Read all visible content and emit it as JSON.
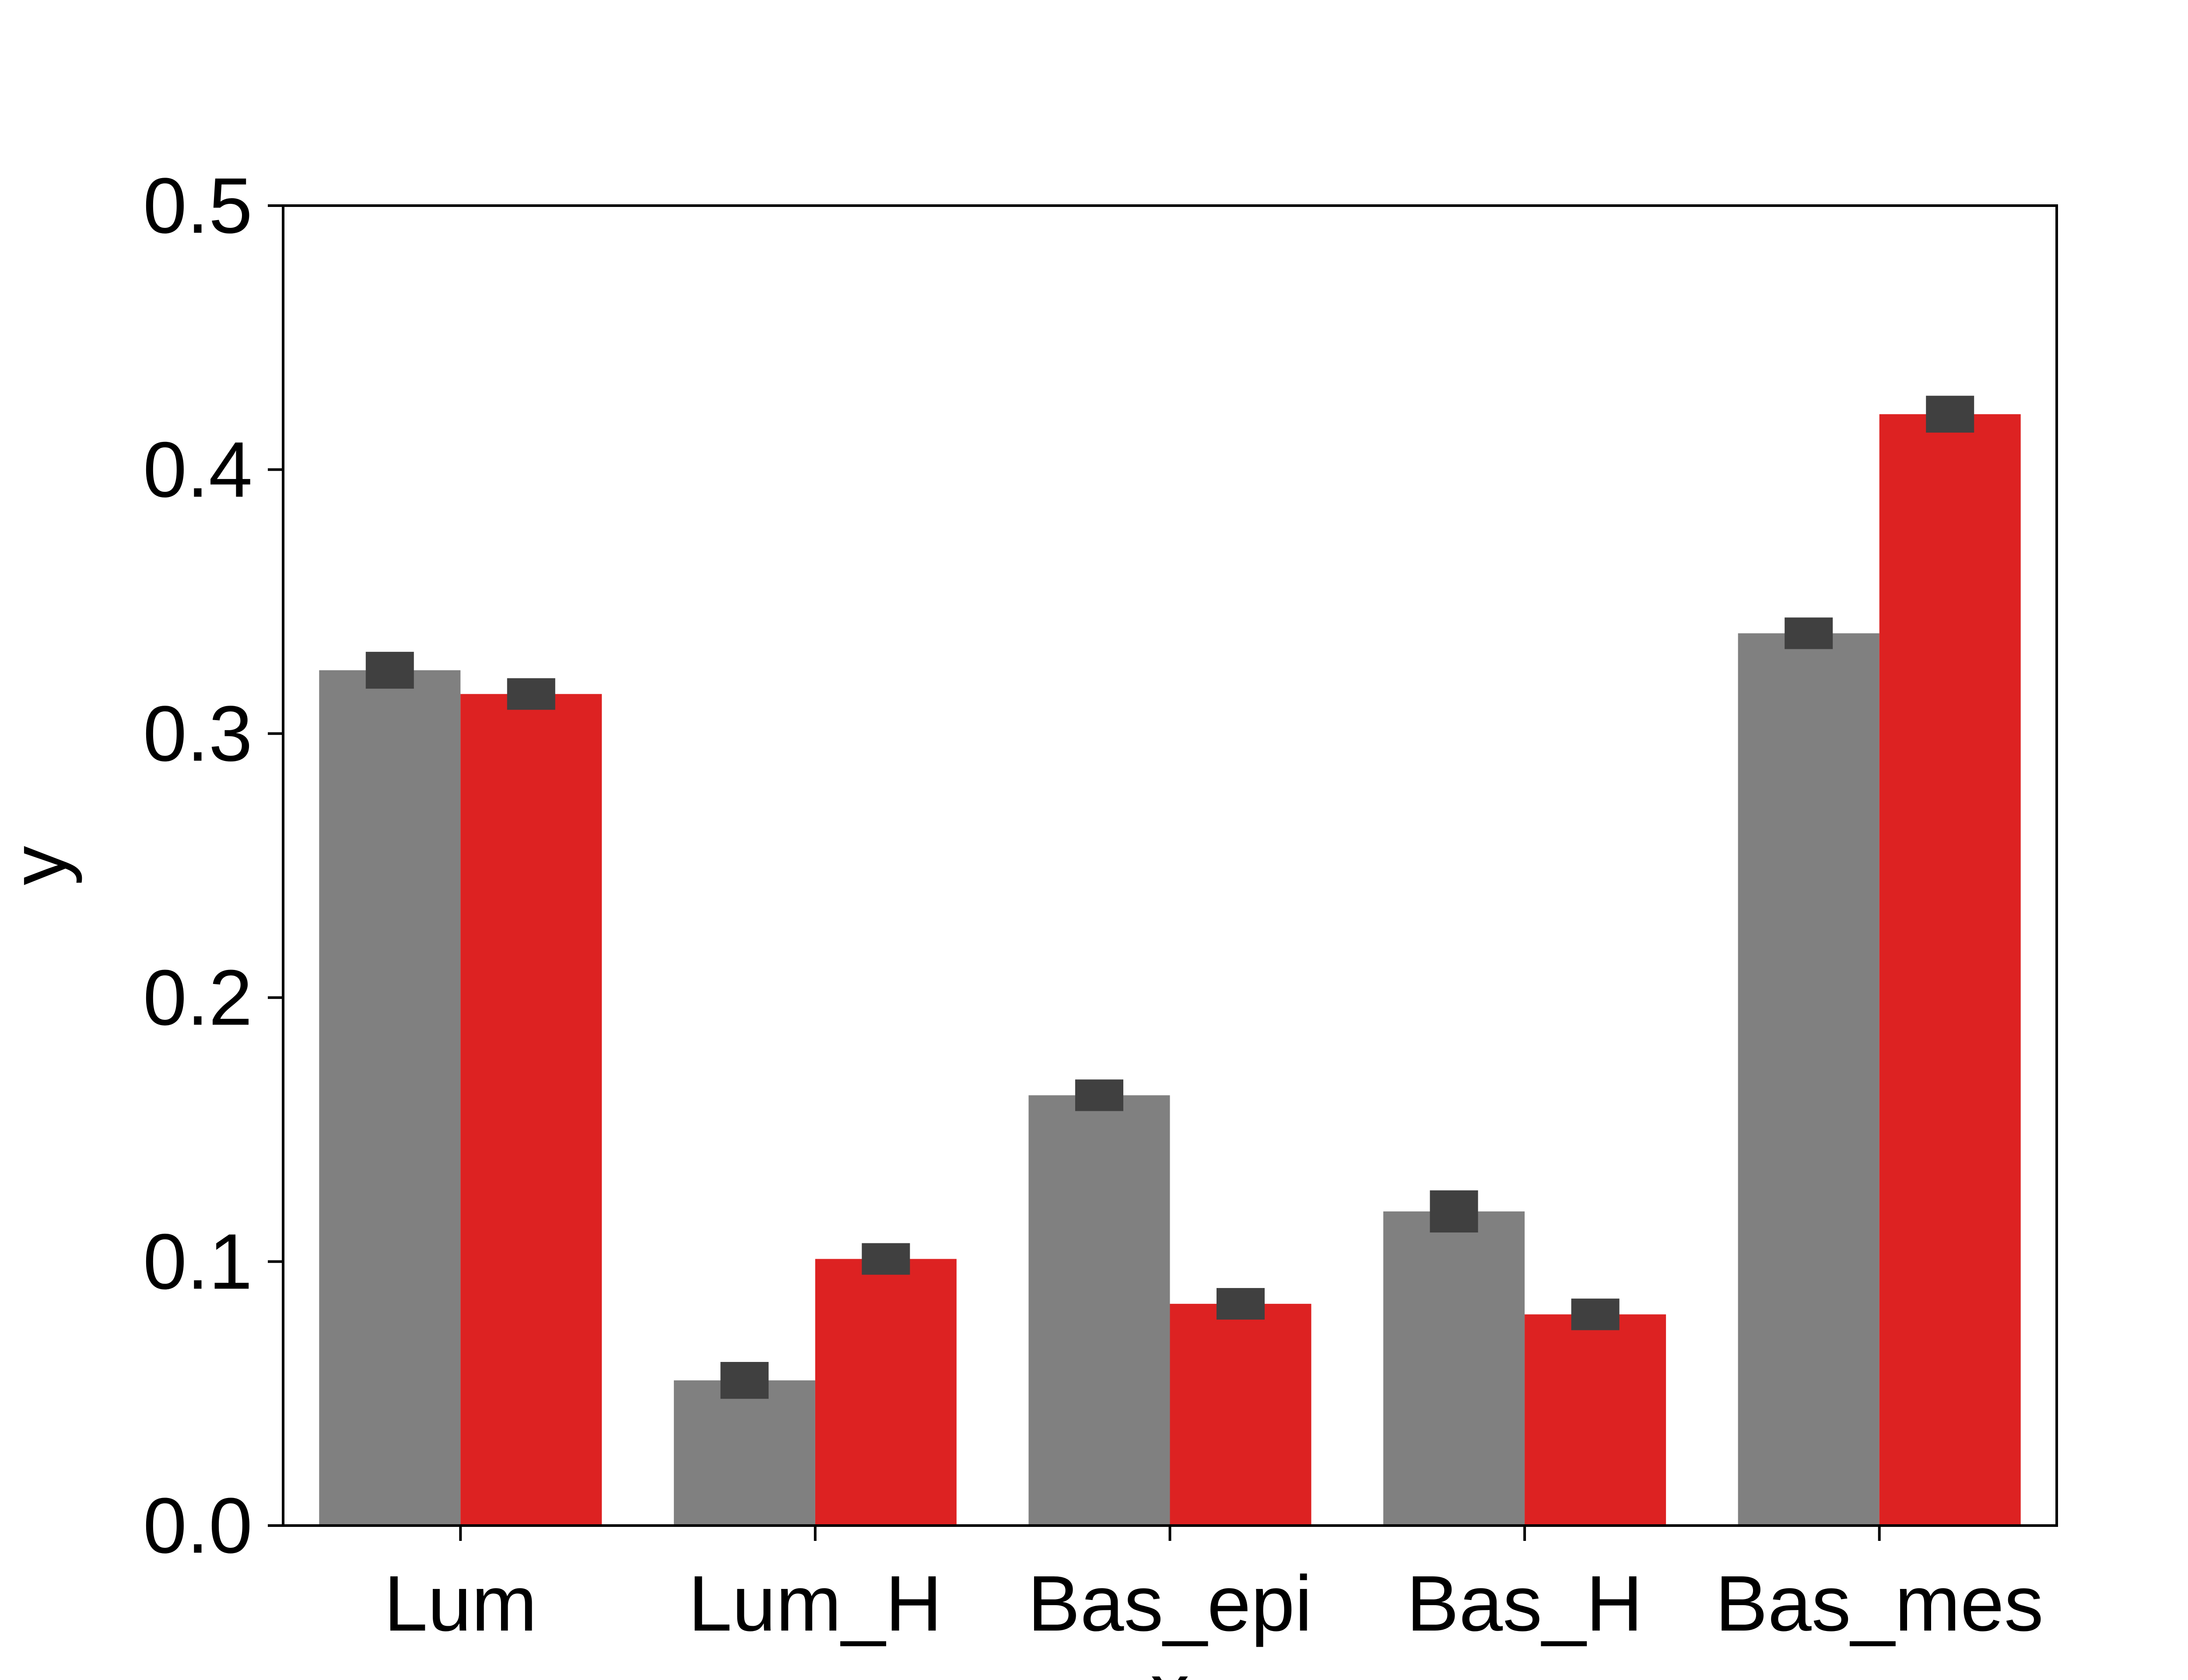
{
  "chart_data": {
    "type": "bar",
    "title": "",
    "xlabel": "x",
    "ylabel": "y",
    "ylim": [
      0,
      0.5
    ],
    "yticks": [
      "0.0",
      "0.1",
      "0.2",
      "0.3",
      "0.4",
      "0.5"
    ],
    "categories": [
      "Lum",
      "Lum_H",
      "Bas_epi",
      "Bas_H",
      "Bas_mes"
    ],
    "grid": false,
    "legend": "none",
    "series": [
      {
        "color": "#808080",
        "values": [
          0.324,
          0.055,
          0.163,
          0.119,
          0.338
        ],
        "errors": [
          0.004,
          0.004,
          0.003,
          0.005,
          0.003
        ]
      },
      {
        "color": "#dd2222",
        "values": [
          0.315,
          0.101,
          0.084,
          0.08,
          0.421
        ],
        "errors": [
          0.003,
          0.003,
          0.003,
          0.003,
          0.004
        ]
      }
    ],
    "error_color": "#404040"
  }
}
